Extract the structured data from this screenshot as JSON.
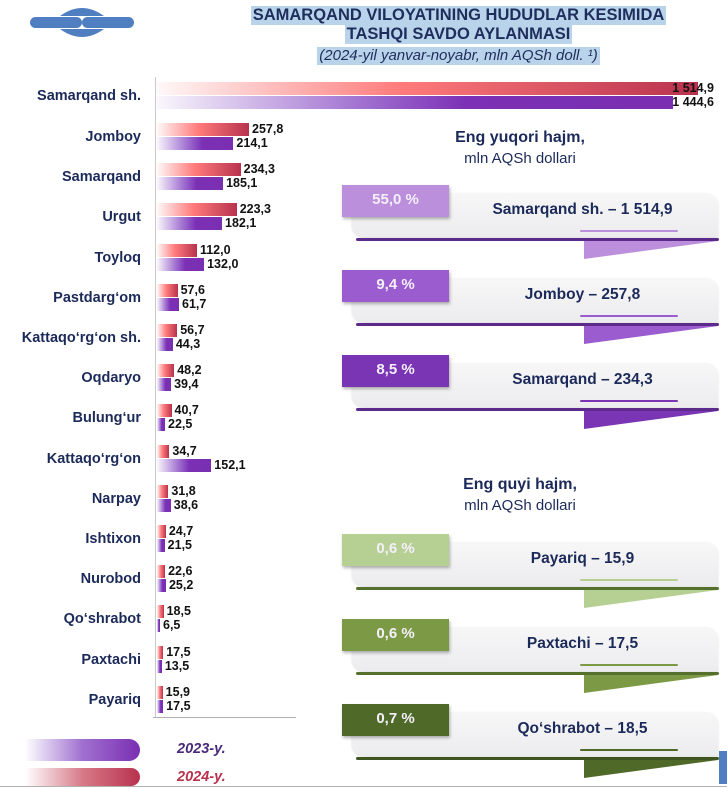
{
  "header": {
    "title_line1": "SAMARQAND VILOYATINING HUDUDLAR KESIMIDA",
    "title_line2": "TASHQI SAVDO AYLANMASI",
    "subtitle": "(2024-yil yanvar-noyabr, mln AQSh doll. ¹)",
    "logo_icon": "statistics-agency-logo"
  },
  "chart_data": {
    "type": "bar",
    "orientation": "horizontal",
    "title": "SAMARQAND VILOYATINING HUDUDLAR KESIMIDA TASHQI SAVDO AYLANMASI",
    "subtitle": "(2024-yil yanvar-noyabr, mln AQSh doll. ¹)",
    "xlabel": "",
    "ylabel": "",
    "grid": false,
    "legend_position": "bottom-left",
    "categories": [
      "Samarqand sh.",
      "Jomboy",
      "Samarqand",
      "Urgut",
      "Toyloq",
      "Pastdarg‘om",
      "Kattaqo‘rg‘on sh.",
      "Oqdaryo",
      "Bulung‘ur",
      "Kattaqo‘rg‘on",
      "Narpay",
      "Ishtixon",
      "Nurobod",
      "Qo‘shrabot",
      "Paxtachi",
      "Payariq"
    ],
    "series": [
      {
        "name": "2024-y.",
        "color": "#b8324e",
        "values": [
          1514.9,
          257.8,
          234.3,
          223.3,
          112.0,
          57.6,
          56.7,
          48.2,
          40.7,
          34.7,
          31.8,
          24.7,
          22.6,
          18.5,
          17.5,
          15.9
        ],
        "labels": [
          "1 514,9",
          "257,8",
          "234,3",
          "223,3",
          "112,0",
          "57,6",
          "56,7",
          "48,2",
          "40,7",
          "34,7",
          "31,8",
          "24,7",
          "22,6",
          "18,5",
          "17,5",
          "15,9"
        ]
      },
      {
        "name": "2023-y.",
        "color": "#7a2fb2",
        "values": [
          1444.6,
          214.1,
          185.1,
          182.1,
          132.0,
          61.7,
          44.3,
          39.4,
          22.5,
          152.1,
          38.6,
          21.5,
          25.2,
          6.5,
          13.5,
          17.5
        ],
        "labels": [
          "1 444,6",
          "214,1",
          "185,1",
          "182,1",
          "132,0",
          "61,7",
          "44,3",
          "39,4",
          "22,5",
          "152,1",
          "38,6",
          "21,5",
          "25,2",
          "6,5",
          "13,5",
          "17,5"
        ]
      }
    ]
  },
  "legend": [
    {
      "label": "2023-y.",
      "color": "#7a2fb2"
    },
    {
      "label": "2024-y.",
      "color": "#b8324e"
    }
  ],
  "top_panel": {
    "heading": "Eng yuqori hajm,",
    "unit": "mln AQSh dollari",
    "cards": [
      {
        "percent": "55,0 %",
        "text": "Samarqand sh. – 1 514,9",
        "color": "#bb8fdc",
        "line": "#5c2a8a"
      },
      {
        "percent": "9,4 %",
        "text": "Jomboy – 257,8",
        "color": "#9a5ccf",
        "line": "#5c2a8a"
      },
      {
        "percent": "8,5 %",
        "text": "Samarqand – 234,3",
        "color": "#7a35b5",
        "line": "#5c2a8a"
      }
    ]
  },
  "bottom_panel": {
    "heading": "Eng quyi hajm,",
    "unit": "mln AQSh dollari",
    "cards": [
      {
        "percent": "0,6 %",
        "text": "Payariq – 15,9",
        "color": "#b6cf93",
        "line": "#55702c"
      },
      {
        "percent": "0,6 %",
        "text": "Paxtachi – 17,5",
        "color": "#7c9a45",
        "line": "#55702c"
      },
      {
        "percent": "0,7 %",
        "text": "Qo‘shrabot – 18,5",
        "color": "#4f6a28",
        "line": "#3e5520"
      }
    ]
  }
}
